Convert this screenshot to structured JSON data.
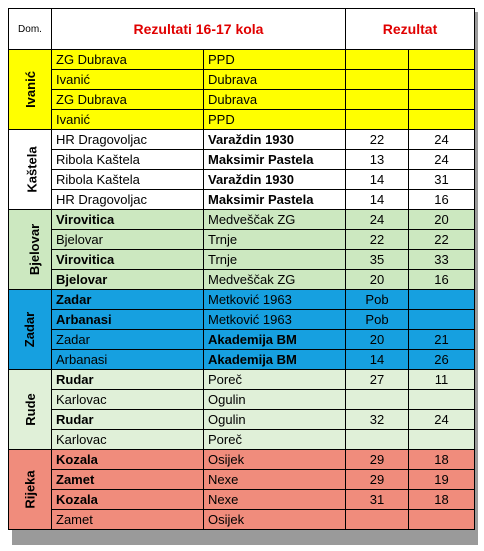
{
  "header": {
    "dom_label": "Dom.",
    "title": "Rezultati  16-17 kola",
    "result_label": "Rezultat"
  },
  "groups": [
    {
      "name": "Ivanić",
      "color": "#ffff00",
      "rows": [
        {
          "home": "ZG Dubrava",
          "away": "PPD",
          "s1": "",
          "s2": "",
          "home_bold": false,
          "away_bold": false
        },
        {
          "home": "Ivanić",
          "away": "Dubrava",
          "s1": "",
          "s2": "",
          "home_bold": false,
          "away_bold": false
        },
        {
          "home": "ZG Dubrava",
          "away": "Dubrava",
          "s1": "",
          "s2": "",
          "home_bold": false,
          "away_bold": false
        },
        {
          "home": "Ivanić",
          "away": "PPD",
          "s1": "",
          "s2": "",
          "home_bold": false,
          "away_bold": false
        }
      ]
    },
    {
      "name": "Kaštela",
      "color": "#ffffff",
      "rows": [
        {
          "home": "HR Dragovoljac",
          "away": "Varaždin 1930",
          "s1": "22",
          "s2": "24",
          "home_bold": false,
          "away_bold": true
        },
        {
          "home": "Ribola Kaštela",
          "away": "Maksimir Pastela",
          "s1": "13",
          "s2": "24",
          "home_bold": false,
          "away_bold": true
        },
        {
          "home": "Ribola  Kaštela",
          "away": "Varaždin 1930",
          "s1": "14",
          "s2": "31",
          "home_bold": false,
          "away_bold": true
        },
        {
          "home": "HR Dragovoljac",
          "away": "Maksimir Pastela",
          "s1": "14",
          "s2": "16",
          "home_bold": false,
          "away_bold": true
        }
      ]
    },
    {
      "name": "Bjelovar",
      "color": "#cce8c0",
      "rows": [
        {
          "home": "Virovitica",
          "away": "Medveščak ZG",
          "s1": "24",
          "s2": "20",
          "home_bold": true,
          "away_bold": false
        },
        {
          "home": "Bjelovar",
          "away": "Trnje",
          "s1": "22",
          "s2": "22",
          "home_bold": false,
          "away_bold": false
        },
        {
          "home": "Virovitica",
          "away": "Trnje",
          "s1": "35",
          "s2": "33",
          "home_bold": true,
          "away_bold": false
        },
        {
          "home": "Bjelovar",
          "away": "Medveščak ZG",
          "s1": "20",
          "s2": "16",
          "home_bold": true,
          "away_bold": false
        }
      ]
    },
    {
      "name": "Zadar",
      "color": "#16a0e0",
      "rows": [
        {
          "home": "Zadar",
          "away": "Metković 1963",
          "s1": "Pob",
          "s2": "",
          "home_bold": true,
          "away_bold": false
        },
        {
          "home": "Arbanasi",
          "away": "Metković 1963",
          "s1": "Pob",
          "s2": "",
          "home_bold": true,
          "away_bold": false
        },
        {
          "home": "Zadar",
          "away": "Akademija BM",
          "s1": "20",
          "s2": "21",
          "home_bold": false,
          "away_bold": true
        },
        {
          "home": "Arbanasi",
          "away": "Akademija BM",
          "s1": "14",
          "s2": "26",
          "home_bold": false,
          "away_bold": true
        }
      ]
    },
    {
      "name": "Rude",
      "color": "#e0f0d8",
      "rows": [
        {
          "home": "Rudar",
          "away": "Poreč",
          "s1": "27",
          "s2": "11",
          "home_bold": true,
          "away_bold": false
        },
        {
          "home": "Karlovac",
          "away": "Ogulin",
          "s1": "",
          "s2": "",
          "home_bold": false,
          "away_bold": false
        },
        {
          "home": "Rudar",
          "away": "Ogulin",
          "s1": "32",
          "s2": "24",
          "home_bold": true,
          "away_bold": false
        },
        {
          "home": "Karlovac",
          "away": "Poreč",
          "s1": "",
          "s2": "",
          "home_bold": false,
          "away_bold": false
        }
      ]
    },
    {
      "name": "Rijeka",
      "color": "#f08c7c",
      "rows": [
        {
          "home": "Kozala",
          "away": "Osijek",
          "s1": "29",
          "s2": "18",
          "home_bold": true,
          "away_bold": false
        },
        {
          "home": "Zamet",
          "away": "Nexe",
          "s1": "29",
          "s2": "19",
          "home_bold": true,
          "away_bold": false
        },
        {
          "home": "Kozala",
          "away": "Nexe",
          "s1": "31",
          "s2": "18",
          "home_bold": true,
          "away_bold": false
        },
        {
          "home": "Zamet",
          "away": "Osijek",
          "s1": "",
          "s2": "",
          "home_bold": false,
          "away_bold": false
        }
      ]
    }
  ]
}
